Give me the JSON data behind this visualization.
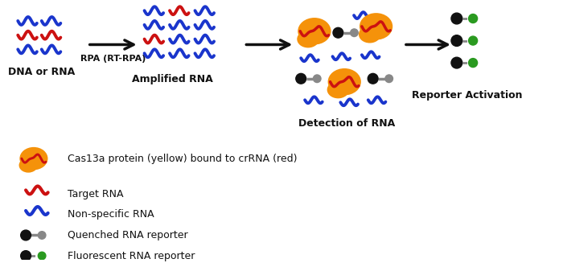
{
  "background_color": "#ffffff",
  "arrow_color": "#111111",
  "blue_rna_color": "#1a35cc",
  "red_rna_color": "#cc1111",
  "orange_cas_color": "#f5920a",
  "black_color": "#111111",
  "gray_color": "#888888",
  "green_color": "#2a9a20",
  "labels": [
    "DNA or RNA",
    "Amplified RNA",
    "Detection of RNA",
    "Reporter Activation"
  ],
  "legend_items": [
    "Cas13a protein (yellow) bound to crRNA (red)",
    "Target RNA",
    "Non-specific RNA",
    "Quenched RNA reporter",
    "Fluorescent RNA reporter"
  ],
  "rpa_label": "RPA (RT-RPA)",
  "figsize": [
    7.0,
    3.27
  ],
  "dpi": 100
}
